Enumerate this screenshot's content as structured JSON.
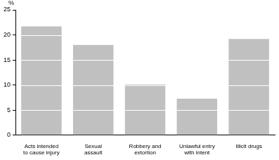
{
  "chart_data": {
    "type": "bar",
    "ylabel": "%",
    "categories": [
      [
        "Acts intended",
        "to cause injury"
      ],
      [
        "Sexual",
        "assault"
      ],
      [
        "Robbery and",
        "extortion"
      ],
      [
        "Unlawful entry",
        "with intent"
      ],
      [
        "Illicit drugs"
      ]
    ],
    "values": [
      21.7,
      18,
      10.1,
      7.3,
      19.2
    ],
    "color": "#c0c0c0",
    "ylim": [
      0,
      25
    ],
    "yticks": [
      0,
      5,
      10,
      15,
      20,
      25
    ],
    "grid": true
  }
}
